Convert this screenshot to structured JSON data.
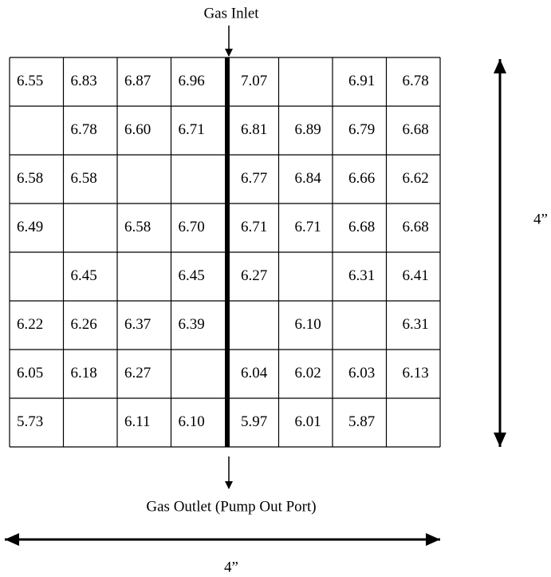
{
  "inlet_label": "Gas Inlet",
  "outlet_label": "Gas Outlet (Pump Out Port)",
  "height_label": "4”",
  "width_label": "4”",
  "grid": {
    "rows": [
      [
        "6.55",
        "6.83",
        "6.87",
        "6.96",
        "7.07",
        null,
        "6.91",
        "6.78"
      ],
      [
        null,
        "6.78",
        "6.60",
        "6.71",
        "6.81",
        "6.89",
        "6.79",
        "6.68"
      ],
      [
        "6.58",
        "6.58",
        null,
        null,
        "6.77",
        "6.84",
        "6.66",
        "6.62"
      ],
      [
        "6.49",
        null,
        "6.58",
        "6.70",
        "6.71",
        "6.71",
        "6.68",
        "6.68"
      ],
      [
        null,
        "6.45",
        null,
        "6.45",
        "6.27",
        null,
        "6.31",
        "6.41"
      ],
      [
        "6.22",
        "6.26",
        "6.37",
        "6.39",
        null,
        "6.10",
        null,
        "6.31"
      ],
      [
        "6.05",
        "6.18",
        "6.27",
        null,
        "6.04",
        "6.02",
        "6.03",
        "6.13"
      ],
      [
        "5.73",
        null,
        "6.11",
        "6.10",
        "5.97",
        "6.01",
        "5.87",
        null
      ]
    ]
  }
}
